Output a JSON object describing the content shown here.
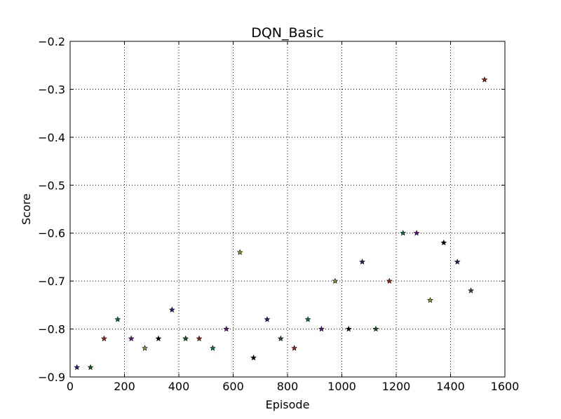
{
  "chart_data": {
    "type": "scatter",
    "title": "DQN_Basic",
    "xlabel": "Episode",
    "ylabel": "Score",
    "xlim": [
      0,
      1600
    ],
    "ylim": [
      -0.9,
      -0.2
    ],
    "xticks": [
      0,
      200,
      400,
      600,
      800,
      1000,
      1200,
      1400,
      1600
    ],
    "yticks": [
      -0.9,
      -0.8,
      -0.7,
      -0.6,
      -0.5,
      -0.4,
      -0.3,
      -0.2
    ],
    "xtick_labels": [
      "0",
      "200",
      "400",
      "600",
      "800",
      "1000",
      "1200",
      "1400",
      "1600"
    ],
    "ytick_labels": [
      "−0.9",
      "−0.8",
      "−0.7",
      "−0.6",
      "−0.5",
      "−0.4",
      "−0.3",
      "−0.2"
    ],
    "grid": true,
    "marker": "star",
    "points": [
      {
        "x": 25,
        "y": -0.88,
        "color": "#1a237e"
      },
      {
        "x": 75,
        "y": -0.88,
        "color": "#1b5e20"
      },
      {
        "x": 125,
        "y": -0.82,
        "color": "#b71c1c"
      },
      {
        "x": 175,
        "y": -0.78,
        "color": "#00796b"
      },
      {
        "x": 225,
        "y": -0.82,
        "color": "#6a1b9a"
      },
      {
        "x": 275,
        "y": -0.84,
        "color": "#9e9d24"
      },
      {
        "x": 325,
        "y": -0.82,
        "color": "#000000"
      },
      {
        "x": 375,
        "y": -0.76,
        "color": "#1a237e"
      },
      {
        "x": 425,
        "y": -0.82,
        "color": "#1b5e20"
      },
      {
        "x": 475,
        "y": -0.82,
        "color": "#b71c1c"
      },
      {
        "x": 525,
        "y": -0.84,
        "color": "#00796b"
      },
      {
        "x": 575,
        "y": -0.8,
        "color": "#6a1b9a"
      },
      {
        "x": 625,
        "y": -0.64,
        "color": "#9e9d24"
      },
      {
        "x": 675,
        "y": -0.86,
        "color": "#000000"
      },
      {
        "x": 725,
        "y": -0.78,
        "color": "#1a237e"
      },
      {
        "x": 775,
        "y": -0.82,
        "color": "#1b5e20"
      },
      {
        "x": 825,
        "y": -0.84,
        "color": "#b71c1c"
      },
      {
        "x": 875,
        "y": -0.78,
        "color": "#00796b"
      },
      {
        "x": 925,
        "y": -0.8,
        "color": "#6a1b9a"
      },
      {
        "x": 975,
        "y": -0.7,
        "color": "#9e9d24"
      },
      {
        "x": 1025,
        "y": -0.8,
        "color": "#000000"
      },
      {
        "x": 1075,
        "y": -0.66,
        "color": "#1a237e"
      },
      {
        "x": 1125,
        "y": -0.8,
        "color": "#1b5e20"
      },
      {
        "x": 1175,
        "y": -0.7,
        "color": "#b71c1c"
      },
      {
        "x": 1225,
        "y": -0.6,
        "color": "#00796b"
      },
      {
        "x": 1275,
        "y": -0.6,
        "color": "#6a1b9a"
      },
      {
        "x": 1325,
        "y": -0.74,
        "color": "#9e9d24"
      },
      {
        "x": 1375,
        "y": -0.62,
        "color": "#000000"
      },
      {
        "x": 1425,
        "y": -0.66,
        "color": "#1a237e"
      },
      {
        "x": 1475,
        "y": -0.72,
        "color": "#1b5e20"
      },
      {
        "x": 1525,
        "y": -0.28,
        "color": "#b71c1c"
      }
    ]
  }
}
